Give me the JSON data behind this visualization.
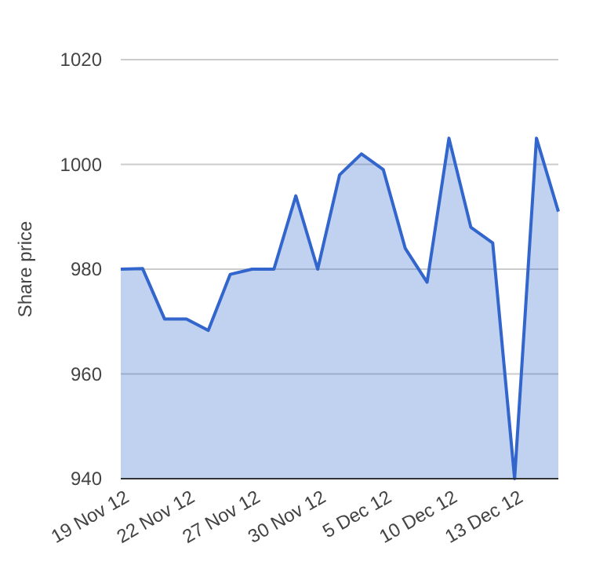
{
  "chart_data": {
    "type": "area",
    "ylabel": "Share price",
    "categories": [
      "19 Nov 12",
      null,
      null,
      "22 Nov 12",
      null,
      null,
      "27 Nov 12",
      null,
      null,
      "30 Nov 12",
      null,
      null,
      "5 Dec 12",
      null,
      null,
      "10 Dec 12",
      null,
      null,
      "13 Dec 12",
      null,
      null
    ],
    "series": [
      {
        "color": "#3366cc",
        "values": [
          980,
          980.1,
          970.5,
          970.5,
          968.3,
          979,
          980,
          980,
          994,
          980,
          998,
          1002,
          999,
          984,
          977.5,
          1005,
          988,
          985,
          940,
          1005,
          991
        ]
      }
    ],
    "ylim": [
      940,
      1020
    ],
    "yticks": [
      940,
      960,
      980,
      1000,
      1020
    ],
    "grid": "y"
  }
}
